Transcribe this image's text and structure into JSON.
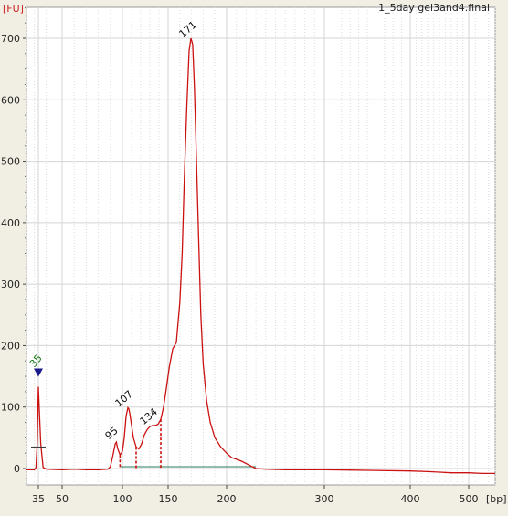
{
  "chart_data": {
    "type": "line",
    "title": "1_5day gel3and4.final",
    "y_unit": "[FU]",
    "x_unit": "[bp]",
    "ylim": [
      -20,
      740
    ],
    "xlim": [
      20,
      540
    ],
    "y_ticks": [
      0,
      100,
      200,
      300,
      400,
      500,
      600,
      700
    ],
    "x_ticks": [
      35,
      50,
      100,
      150,
      200,
      300,
      400,
      500
    ],
    "grid": true,
    "series": [
      {
        "color": "#cc1111",
        "x": [
          20,
          30,
          32,
          33.5,
          35,
          36.5,
          38,
          40,
          50,
          60,
          70,
          80,
          88,
          90,
          92,
          94,
          95,
          96,
          98,
          100,
          102,
          104,
          106,
          107,
          108,
          110,
          112,
          115,
          118,
          121,
          124,
          127,
          130,
          133,
          134,
          136,
          139,
          142,
          145,
          148,
          151,
          154,
          157,
          160,
          162,
          164,
          166,
          168,
          169.5,
          171,
          172.5,
          174,
          176,
          178,
          180,
          183,
          186,
          190,
          195,
          200,
          205,
          210,
          215,
          220,
          225,
          230,
          240,
          260,
          300,
          350,
          400,
          430,
          450,
          470,
          500,
          520,
          540
        ],
        "y": [
          -2,
          -2,
          2,
          40,
          133,
          40,
          2,
          -1,
          -2,
          -1,
          -2,
          -2,
          -1,
          3,
          20,
          40,
          43,
          33,
          22,
          28,
          50,
          85,
          99,
          97,
          90,
          70,
          50,
          35,
          32,
          40,
          55,
          63,
          68,
          70,
          70,
          70,
          72,
          80,
          100,
          130,
          165,
          195,
          205,
          270,
          350,
          480,
          590,
          680,
          700,
          690,
          620,
          520,
          380,
          250,
          170,
          110,
          75,
          50,
          35,
          25,
          18,
          15,
          12,
          8,
          4,
          0,
          -1,
          -2,
          -2,
          -3,
          -4,
          -5,
          -6,
          -7,
          -7,
          -8,
          -8
        ]
      }
    ],
    "peaks": [
      {
        "label": "35",
        "x": 35,
        "y": 133
      },
      {
        "label": "95",
        "x": 95,
        "y": 43
      },
      {
        "label": "107",
        "x": 107,
        "y": 99
      },
      {
        "label": "134",
        "x": 134,
        "y": 70
      },
      {
        "label": "171",
        "x": 171,
        "y": 700
      }
    ],
    "region_markers": [
      {
        "x": 98,
        "y": 22
      },
      {
        "x": 115,
        "y": 35
      },
      {
        "x": 142,
        "y": 80
      }
    ],
    "baseline": {
      "x_start": 98,
      "x_end": 230,
      "y": 3
    }
  }
}
